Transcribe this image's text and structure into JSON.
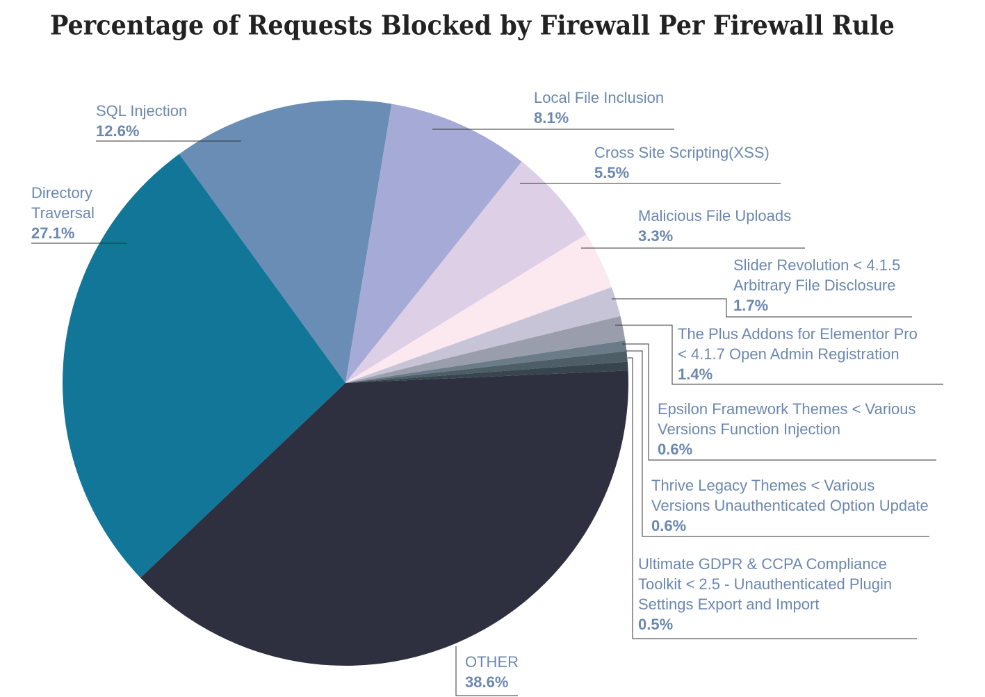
{
  "chart_data": {
    "type": "pie",
    "title": "Percentage of Requests Blocked by Firewall Per Firewall Rule",
    "categories": [
      "OTHER",
      "Directory\nTraversal",
      "SQL Injection",
      "Local File Inclusion",
      "Cross Site Scripting(XSS)",
      "Malicious File Uploads",
      "Slider Revolution < 4.1.5\nArbitrary File Disclosure",
      "The Plus Addons for Elementor Pro\n< 4.1.7 Open Admin Registration",
      "Epsilon Framework Themes < Various\nVersions Function Injection",
      "Thrive Legacy Themes < Various\nVersions Unauthenticated Option Update",
      "Ultimate GDPR & CCPA Compliance\nToolkit < 2.5 - Unauthenticated Plugin\nSettings Export and Import"
    ],
    "values": [
      38.6,
      27.1,
      12.6,
      8.1,
      5.5,
      3.3,
      1.7,
      1.4,
      0.6,
      0.6,
      0.5
    ],
    "value_labels": [
      "38.6%",
      "27.1%",
      "12.6%",
      "8.1%",
      "5.5%",
      "3.3%",
      "1.7%",
      "1.4%",
      "0.6%",
      "0.6%",
      "0.5%"
    ],
    "colors": [
      "#2e3040",
      "#127699",
      "#6a8db5",
      "#a5abd6",
      "#dccfe6",
      "#fce8ef",
      "#c7c4d8",
      "#9a9dac",
      "#6c7b88",
      "#4d5e66",
      "#38454e"
    ]
  }
}
